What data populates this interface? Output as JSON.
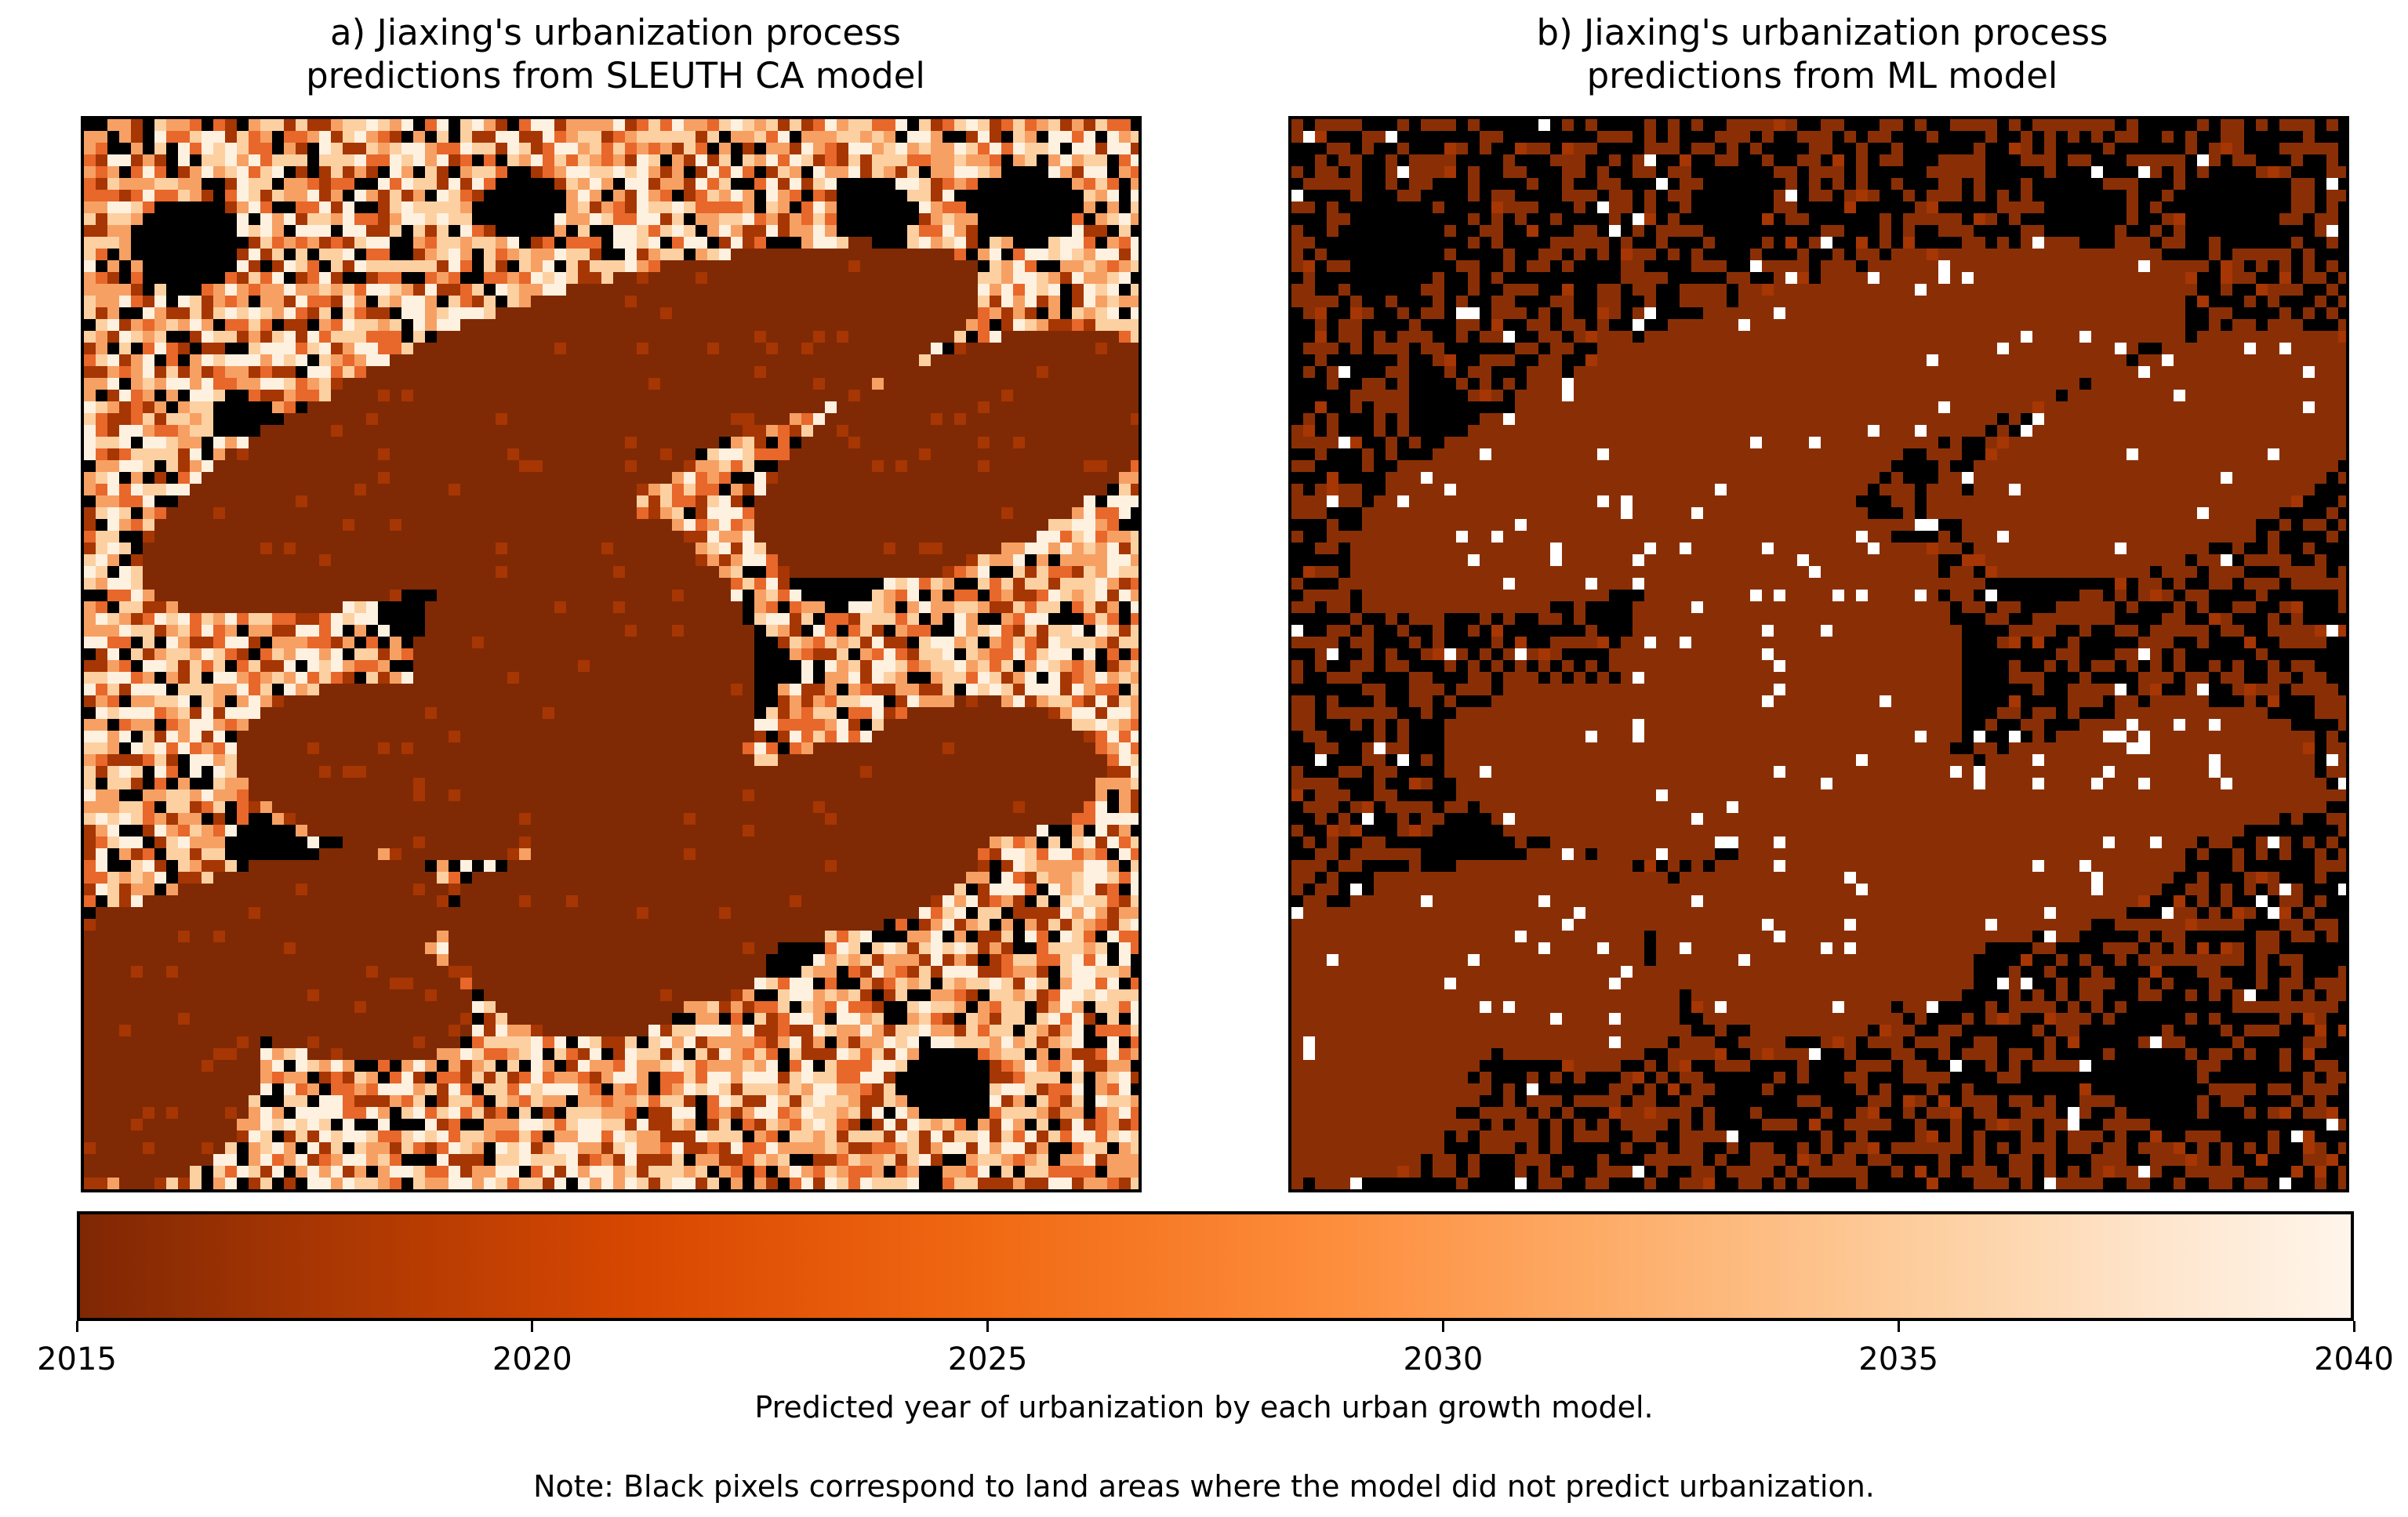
{
  "chart_data": [
    {
      "type": "heatmap",
      "title": [
        "a) Jiaxing's urbanization process",
        "predictions from SLEUTH CA model"
      ],
      "colormap": "Oranges_r",
      "value_range": [
        2015,
        2040
      ],
      "no_data_color": "#000000",
      "axes_visible": false
    },
    {
      "type": "heatmap",
      "title": [
        "b) Jiaxing's urbanization process",
        "predictions from ML model"
      ],
      "colormap": "Oranges_r",
      "value_range": [
        2015,
        2040
      ],
      "no_data_color": "#000000",
      "axes_visible": false
    }
  ],
  "colorbar": {
    "orientation": "horizontal",
    "ticks": [
      "2015",
      "2020",
      "2025",
      "2030",
      "2035",
      "2040"
    ],
    "tick_values": [
      2015,
      2020,
      2025,
      2030,
      2035,
      2040
    ],
    "range": [
      2015,
      2040
    ],
    "colors": [
      "#7f2704",
      "#a63603",
      "#d94801",
      "#f16913",
      "#fd8d3c",
      "#fdae6b",
      "#fdd0a2",
      "#fee6ce",
      "#fff5eb"
    ],
    "label": "Predicted year of urbanization by each urban growth model."
  },
  "note": "Note: Black pixels correspond to land areas where the model did not predict urbanization."
}
